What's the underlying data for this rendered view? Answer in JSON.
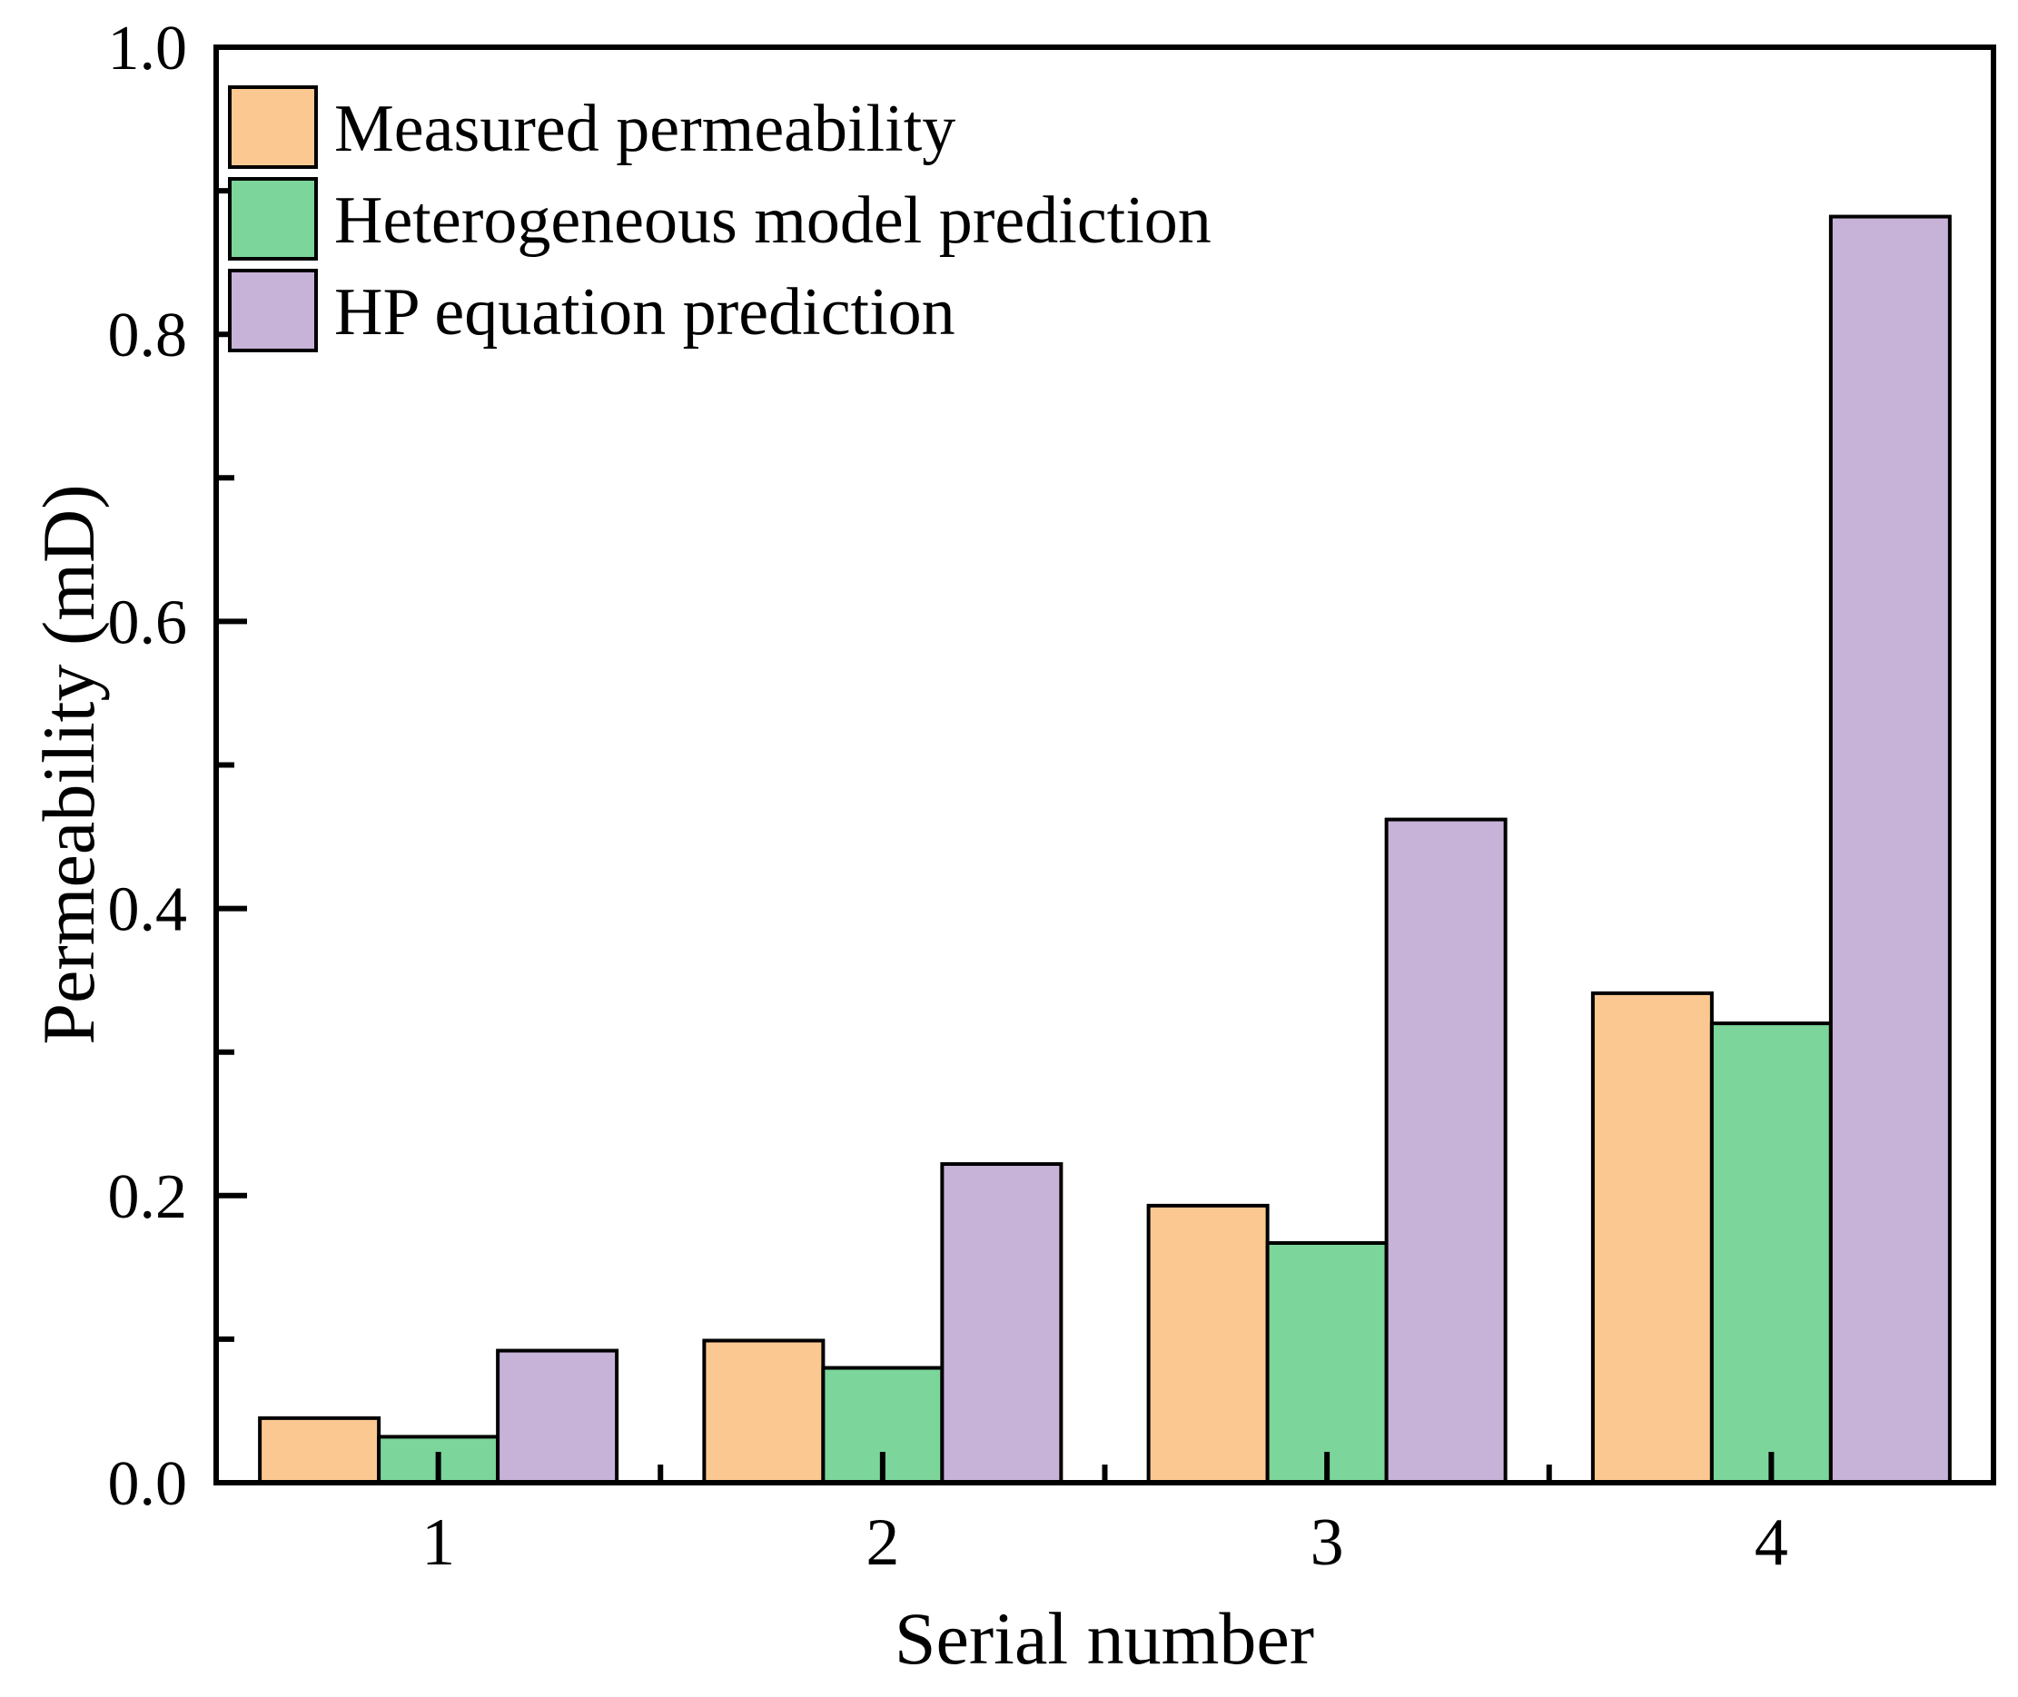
{
  "chart_data": {
    "type": "bar",
    "title": "",
    "xlabel": "Serial number",
    "ylabel": "Permeability (mD)",
    "categories": [
      "1",
      "2",
      "3",
      "4"
    ],
    "series": [
      {
        "name": "Measured permeability",
        "color": "#FCC892",
        "values": [
          0.045,
          0.099,
          0.193,
          0.341
        ]
      },
      {
        "name": "Heterogeneous model prediction",
        "color": "#7CD59A",
        "values": [
          0.032,
          0.08,
          0.167,
          0.32
        ]
      },
      {
        "name": "HP equation prediction",
        "color": "#C8B3D8",
        "values": [
          0.092,
          0.222,
          0.462,
          0.882
        ]
      }
    ],
    "ylim": [
      0.0,
      1.0
    ],
    "ytick_labels": [
      "0.0",
      "0.2",
      "0.4",
      "0.6",
      "0.8",
      "1.0"
    ],
    "ytick_major_step": 0.2,
    "ytick_minor_step": 0.1,
    "grid": false,
    "legend_position": "top-left",
    "bar_edge_color": "#000000",
    "axis_color": "#000000",
    "background_color": "#ffffff"
  }
}
